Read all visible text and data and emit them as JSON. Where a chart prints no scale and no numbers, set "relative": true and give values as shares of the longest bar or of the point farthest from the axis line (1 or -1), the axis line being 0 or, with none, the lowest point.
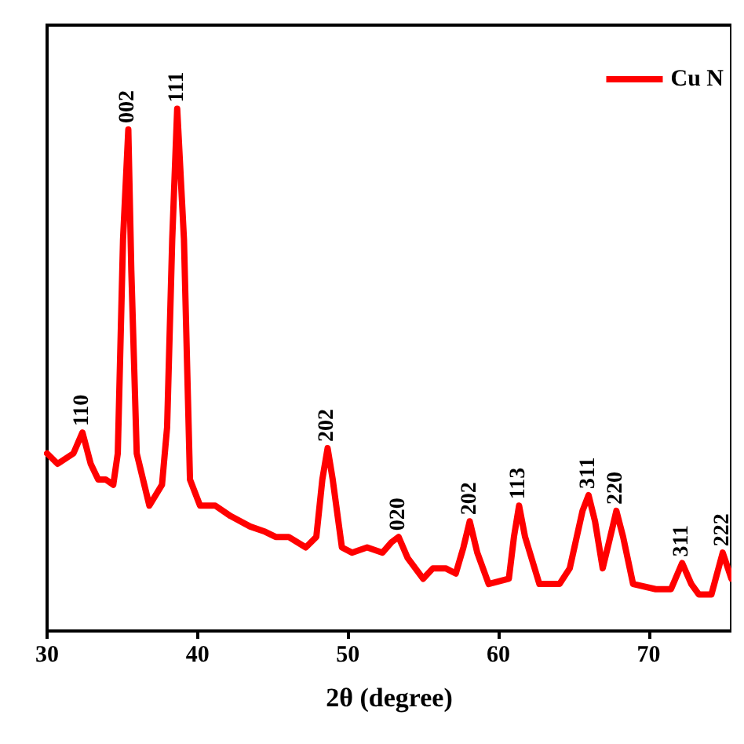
{
  "chart_data": {
    "type": "line",
    "relative": true,
    "xlabel": "2θ (degree)",
    "xlim": [
      30,
      75.5
    ],
    "xticks": [
      30,
      40,
      50,
      60,
      70
    ],
    "legend": "top right",
    "grid": false,
    "marker": "none",
    "line_style": "solid",
    "series": [
      {
        "name": "Cu N",
        "color": "#ff0000",
        "x": [
          30,
          30.7,
          31.75,
          32.35,
          32.9,
          33.4,
          33.9,
          34.4,
          34.7,
          35.05,
          35.4,
          35.6,
          35.96,
          36.8,
          37.64,
          37.98,
          38.32,
          38.65,
          39.1,
          39.5,
          40.17,
          41.18,
          42.2,
          43.5,
          44.5,
          45.2,
          46.06,
          47.2,
          47.9,
          48.3,
          48.65,
          48.99,
          49.6,
          50.27,
          51.28,
          52.3,
          52.9,
          53.37,
          53.97,
          55,
          55.65,
          56.5,
          57.17,
          57.68,
          58.1,
          58.6,
          59.36,
          60.7,
          61.04,
          61.38,
          61.78,
          62.73,
          64.07,
          64.75,
          65.6,
          66,
          66.43,
          66.94,
          67.44,
          67.85,
          68.3,
          68.96,
          70.47,
          71.48,
          72.22,
          72.83,
          73.33,
          74.17,
          74.92,
          75.5
        ],
        "values": [
          0.34,
          0.32,
          0.34,
          0.38,
          0.32,
          0.29,
          0.29,
          0.28,
          0.34,
          0.75,
          0.96,
          0.69,
          0.34,
          0.24,
          0.28,
          0.39,
          0.75,
          1,
          0.75,
          0.29,
          0.24,
          0.24,
          0.22,
          0.2,
          0.19,
          0.18,
          0.18,
          0.16,
          0.18,
          0.29,
          0.35,
          0.29,
          0.16,
          0.15,
          0.16,
          0.15,
          0.17,
          0.18,
          0.14,
          0.1,
          0.12,
          0.12,
          0.11,
          0.16,
          0.21,
          0.15,
          0.09,
          0.1,
          0.18,
          0.24,
          0.18,
          0.09,
          0.09,
          0.12,
          0.23,
          0.26,
          0.21,
          0.12,
          0.18,
          0.23,
          0.18,
          0.09,
          0.08,
          0.08,
          0.13,
          0.09,
          0.07,
          0.07,
          0.15,
          0.1
        ]
      }
    ],
    "annotations": [
      {
        "text": "110",
        "x": 32.35,
        "y": 0.38
      },
      {
        "text": "002",
        "x": 35.4,
        "y": 0.96
      },
      {
        "text": "111",
        "x": 38.65,
        "y": 1
      },
      {
        "text": "202",
        "x": 48.65,
        "y": 0.35
      },
      {
        "text": "020",
        "x": 53.37,
        "y": 0.18
      },
      {
        "text": "202",
        "x": 58.1,
        "y": 0.21
      },
      {
        "text": "113",
        "x": 61.38,
        "y": 0.24
      },
      {
        "text": "311",
        "x": 66,
        "y": 0.26
      },
      {
        "text": "220",
        "x": 67.85,
        "y": 0.23
      },
      {
        "text": "311",
        "x": 72.22,
        "y": 0.13
      },
      {
        "text": "222",
        "x": 74.92,
        "y": 0.15
      }
    ]
  }
}
